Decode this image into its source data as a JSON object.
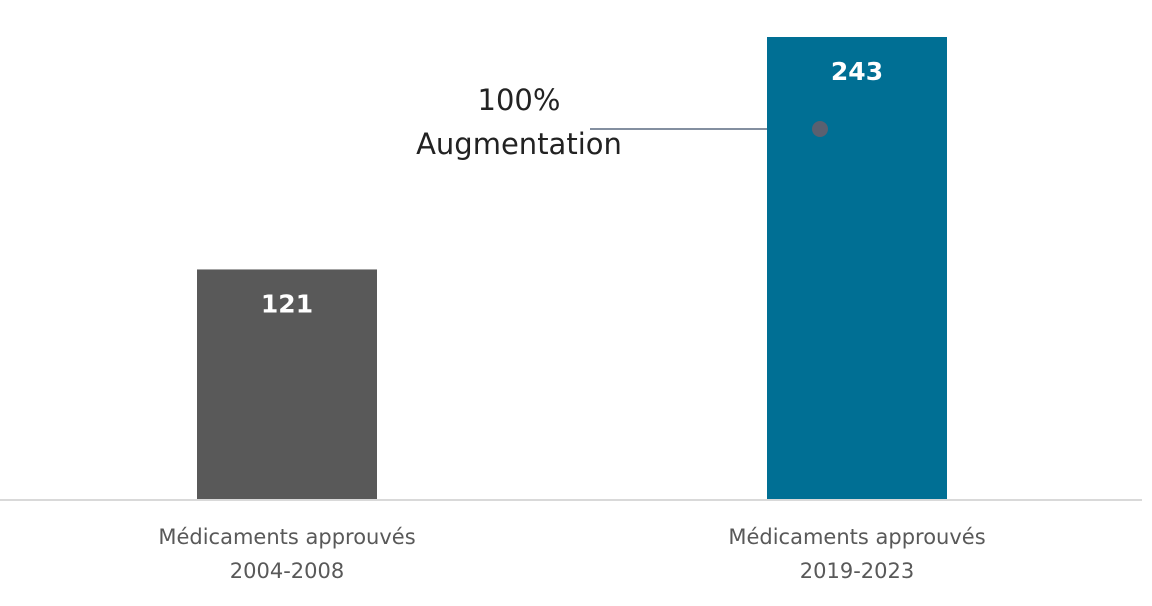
{
  "chart_data": {
    "type": "bar",
    "categories": [
      "Médicaments approuvés\n2004-2008",
      "Médicaments approuvés\n2019-2023"
    ],
    "values": [
      121,
      243
    ],
    "colors": [
      "#595959",
      "#006f94"
    ],
    "ylim": [
      0,
      243
    ],
    "annotation": "100%\nAugmentation"
  }
}
